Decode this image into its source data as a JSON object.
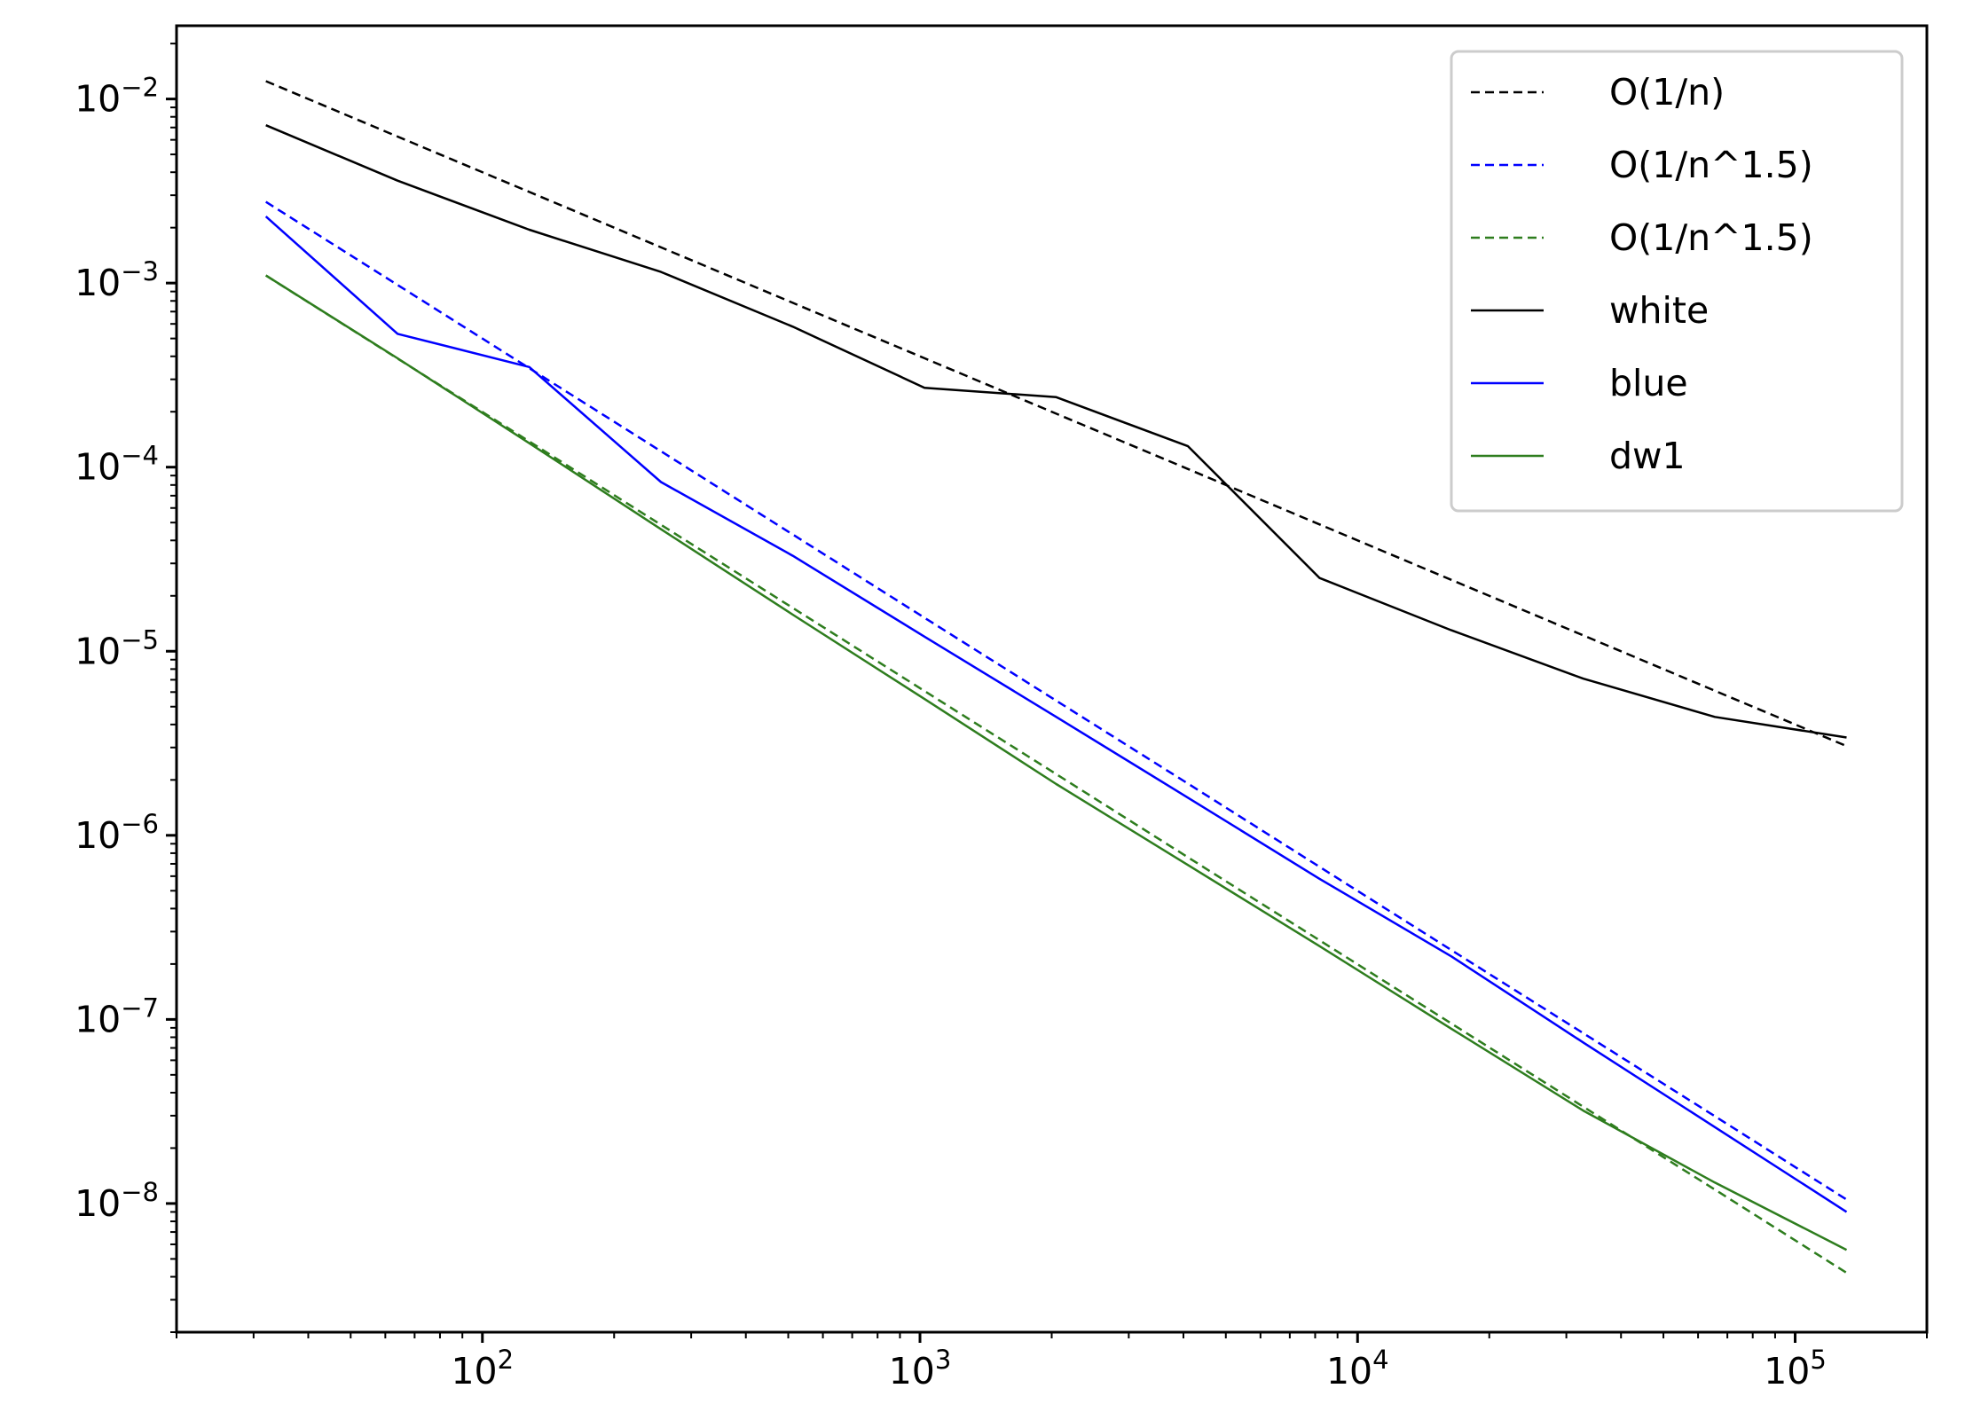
{
  "chart_data": {
    "type": "line",
    "xscale": "log",
    "yscale": "log",
    "xlim": [
      20,
      200000
    ],
    "ylim": [
      2e-09,
      0.025
    ],
    "x_ticks": [
      {
        "value": 100,
        "base": "10",
        "exp": "2"
      },
      {
        "value": 1000,
        "base": "10",
        "exp": "3"
      },
      {
        "value": 10000,
        "base": "10",
        "exp": "4"
      },
      {
        "value": 100000,
        "base": "10",
        "exp": "5"
      }
    ],
    "y_ticks": [
      {
        "value": 0.01,
        "base": "10",
        "exp": "−2"
      },
      {
        "value": 0.001,
        "base": "10",
        "exp": "−3"
      },
      {
        "value": 0.0001,
        "base": "10",
        "exp": "−4"
      },
      {
        "value": 1e-05,
        "base": "10",
        "exp": "−5"
      },
      {
        "value": 1e-06,
        "base": "10",
        "exp": "−6"
      },
      {
        "value": 1e-07,
        "base": "10",
        "exp": "−7"
      },
      {
        "value": 1e-08,
        "base": "10",
        "exp": "−8"
      }
    ],
    "grid": false,
    "legend_position": "top-right",
    "x": [
      32,
      64,
      128,
      256,
      512,
      1024,
      2048,
      4096,
      8192,
      16384,
      32768,
      65536,
      131072
    ],
    "series": [
      {
        "name": "O(1/n)",
        "color": "#000000",
        "dashed": true,
        "values": [
          0.0125,
          0.00625,
          0.003125,
          0.0015625,
          0.00078125,
          0.000390625,
          0.000195312,
          9.76562e-05,
          4.88281e-05,
          2.44141e-05,
          1.2207e-05,
          6.10352e-06,
          3.05176e-06
        ]
      },
      {
        "name": "O(1/n^1.5)",
        "color": "#0000ff",
        "dashed": true,
        "values": [
          0.00276,
          0.000976,
          0.000345,
          0.000122,
          4.31e-05,
          1.52e-05,
          5.39e-06,
          1.91e-06,
          6.74e-07,
          2.38e-07,
          8.43e-08,
          2.98e-08,
          1.05e-08
        ]
      },
      {
        "name": "O(1/n^1.5)",
        "color": "#2e7d1e",
        "dashed": true,
        "values": [
          0.0011,
          0.000389,
          0.000138,
          4.86e-05,
          1.72e-05,
          6.08e-06,
          2.15e-06,
          7.6e-07,
          2.69e-07,
          9.5e-08,
          3.36e-08,
          1.19e-08,
          4.2e-09
        ]
      },
      {
        "name": "white",
        "color": "#000000",
        "dashed": false,
        "values": [
          0.0072,
          0.0036,
          0.00195,
          0.00115,
          0.00058,
          0.00027,
          0.00024,
          0.00013,
          2.5e-05,
          1.3e-05,
          7.1e-06,
          4.4e-06,
          3.4e-06
        ]
      },
      {
        "name": "blue",
        "color": "#0000ff",
        "dashed": false,
        "values": [
          0.0023,
          0.00053,
          0.00035,
          8.3e-05,
          3.3e-05,
          1.2e-05,
          4.4e-06,
          1.6e-06,
          5.8e-07,
          2.2e-07,
          7.5e-08,
          2.6e-08,
          9e-09
        ]
      },
      {
        "name": "dw1",
        "color": "#2e7d1e",
        "dashed": false,
        "values": [
          0.0011,
          0.00039,
          0.000135,
          4.6e-05,
          1.58e-05,
          5.5e-06,
          1.9e-06,
          6.9e-07,
          2.5e-07,
          8.9e-08,
          3.2e-08,
          1.3e-08,
          5.6e-09
        ]
      }
    ]
  }
}
